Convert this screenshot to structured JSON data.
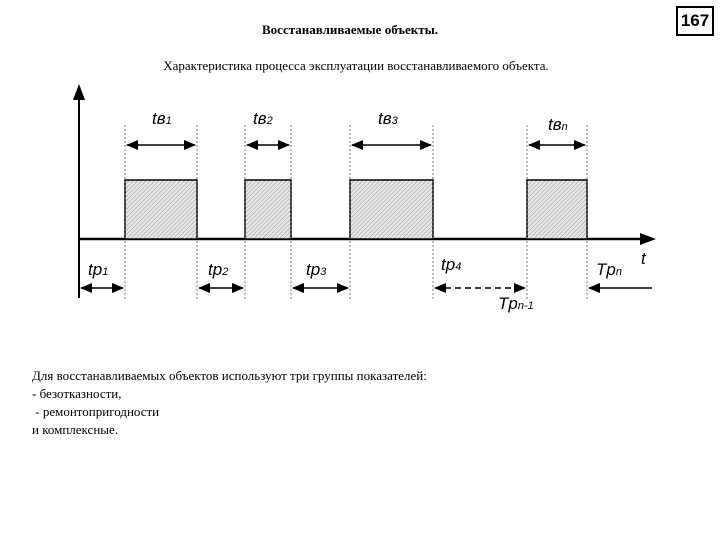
{
  "header": {
    "title": "Восстанавливаемые объекты.",
    "subtitle": "Характеристика процесса эксплуатации восстанавливаемого объекта.",
    "page_number": "167"
  },
  "diagram": {
    "axis_label": "t",
    "repair_intervals": [
      {
        "base": "t",
        "sub1": "в",
        "sub2": "1"
      },
      {
        "base": "t",
        "sub1": "в",
        "sub2": "2"
      },
      {
        "base": "t",
        "sub1": "в",
        "sub2": "3"
      },
      {
        "base": "t",
        "sub1": "в",
        "sub2": "n"
      }
    ],
    "work_intervals": [
      {
        "base": "t",
        "sub1": "р",
        "sub2": "1"
      },
      {
        "base": "t",
        "sub1": "р",
        "sub2": "2"
      },
      {
        "base": "t",
        "sub1": "р",
        "sub2": "3"
      },
      {
        "base": "t",
        "sub1": "р",
        "sub2": "4"
      },
      {
        "base": "T",
        "sub1": "р",
        "sub2": "n"
      },
      {
        "base": "T",
        "sub1": "р",
        "sub2": "n-1"
      }
    ]
  },
  "body": {
    "lines": [
      "Для восстанавливаемых объектов используют три группы показателей:",
      "- безотказности,",
      " - ремонтопригодности",
      "и комплексные."
    ]
  }
}
